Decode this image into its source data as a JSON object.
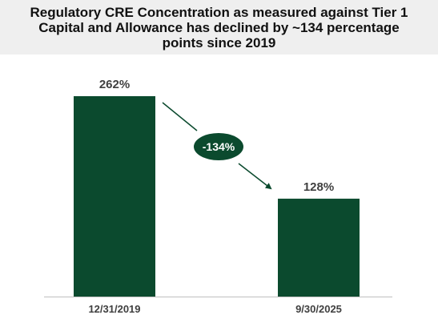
{
  "title_lines": [
    "Regulatory CRE Concentration as measured against Tier 1",
    "Capital and Allowance has declined by ~134 percentage",
    "points since 2019"
  ],
  "chart_data": {
    "type": "bar",
    "title": "Regulatory CRE Concentration as measured against Tier 1 Capital and Allowance has declined by ~134 percentage points since 2019",
    "categories": [
      "12/31/2019",
      "9/30/2025"
    ],
    "values": [
      262,
      128
    ],
    "value_labels": [
      "262%",
      "128%"
    ],
    "unit": "%",
    "ylim": [
      0,
      262
    ],
    "grid": false,
    "legend": "none",
    "annotation": {
      "text": "-134%",
      "from_category": "12/31/2019",
      "to_category": "9/30/2025"
    },
    "colors": {
      "bar": "#0b4a2e",
      "annotation_fill": "#0b4a2e",
      "annotation_text": "#ffffff",
      "arrow": "#0b4a2e",
      "axis": "#bfbfbf",
      "label_text": "#404040"
    }
  }
}
